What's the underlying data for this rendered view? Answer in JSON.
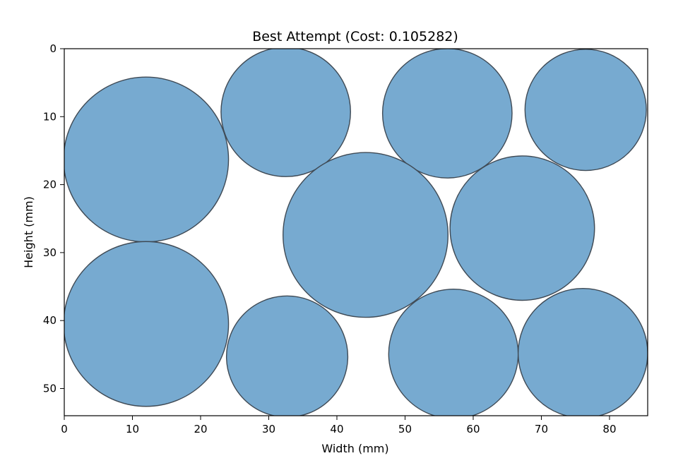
{
  "chart_data": {
    "type": "scatter",
    "mark": "circle",
    "title": "Best Attempt (Cost: 0.105282)",
    "xlabel": "Width (mm)",
    "ylabel": "Height (mm)",
    "xlim": [
      0,
      85.6
    ],
    "ylim": [
      54,
      0
    ],
    "y_inverted": true,
    "grid": false,
    "x_ticks": [
      "0",
      "10",
      "20",
      "30",
      "40",
      "50",
      "60",
      "70",
      "80"
    ],
    "y_ticks": [
      "0",
      "10",
      "20",
      "30",
      "40",
      "50"
    ],
    "circle_fill": "#77aad0",
    "circle_edge": "#3f4a55",
    "circles": [
      {
        "x": 12.0,
        "y": 16.3,
        "r": 12.1
      },
      {
        "x": 32.5,
        "y": 9.3,
        "r": 9.5
      },
      {
        "x": 56.2,
        "y": 9.5,
        "r": 9.5
      },
      {
        "x": 76.5,
        "y": 9.0,
        "r": 8.9
      },
      {
        "x": 44.2,
        "y": 27.4,
        "r": 12.1
      },
      {
        "x": 67.2,
        "y": 26.4,
        "r": 10.6
      },
      {
        "x": 12.0,
        "y": 40.5,
        "r": 12.1
      },
      {
        "x": 32.7,
        "y": 45.3,
        "r": 8.9
      },
      {
        "x": 57.1,
        "y": 44.9,
        "r": 9.5
      },
      {
        "x": 76.1,
        "y": 44.8,
        "r": 9.5
      }
    ]
  }
}
